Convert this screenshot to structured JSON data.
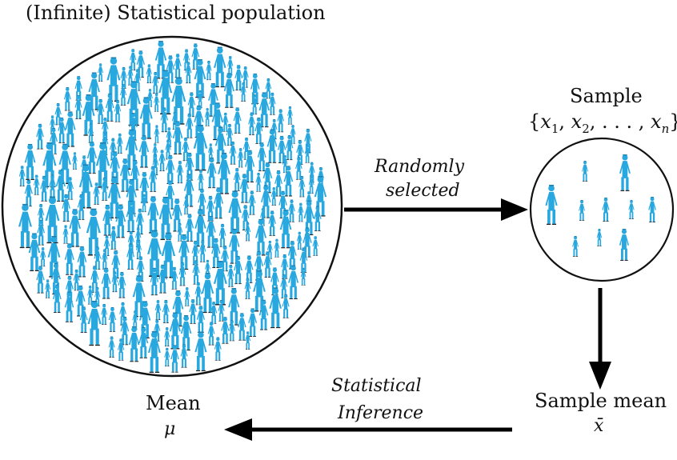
{
  "population_title": "(Infinite) Statistical population",
  "sample_title": "Sample",
  "sample_set": {
    "open": "{",
    "x": "x",
    "sub1": "1",
    "sub2": "2",
    "sub_n": "n",
    "dots": ". . . ,",
    "close": "}"
  },
  "arrow_random_line1": "Randomly",
  "arrow_random_line2": "selected",
  "sample_mean_title": "Sample mean",
  "sample_mean_symbol": "x̄",
  "inference_line1": "Statistical",
  "inference_line2": "Inference",
  "mean_title": "Mean",
  "mean_symbol": "μ",
  "colors": {
    "figure": "#29a8e0",
    "figure_dark": "#1c7fb0",
    "outline": "#111111",
    "arrow": "#000000"
  },
  "icons": {
    "person": "person-icon"
  }
}
